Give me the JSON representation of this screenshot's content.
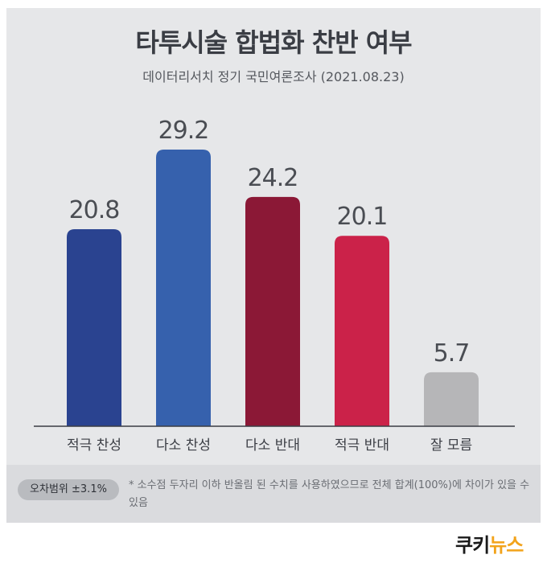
{
  "title": "타투시술 합법화 찬반 여부",
  "subtitle": "데이터리서치 정기 국민여론조사 (2021.08.23)",
  "chart_data": {
    "type": "bar",
    "categories": [
      "적극 찬성",
      "다소 찬성",
      "다소 반대",
      "적극 반대",
      "잘 모름"
    ],
    "values": [
      20.8,
      29.2,
      24.2,
      20.1,
      5.7
    ],
    "colors": [
      "#2a4390",
      "#3661ad",
      "#8b1836",
      "#cb2249",
      "#b6b6b8"
    ],
    "ylim": [
      0,
      30
    ]
  },
  "footer": {
    "margin_of_error": "오차범위 ±3.1%",
    "note": "* 소수점 두자리 이하 반올림 된 수치를 사용하였으므로 전체 합계(100%)에 차이가 있을 수 있음"
  },
  "logo": {
    "part1": "쿠키",
    "part2": "뉴스"
  }
}
